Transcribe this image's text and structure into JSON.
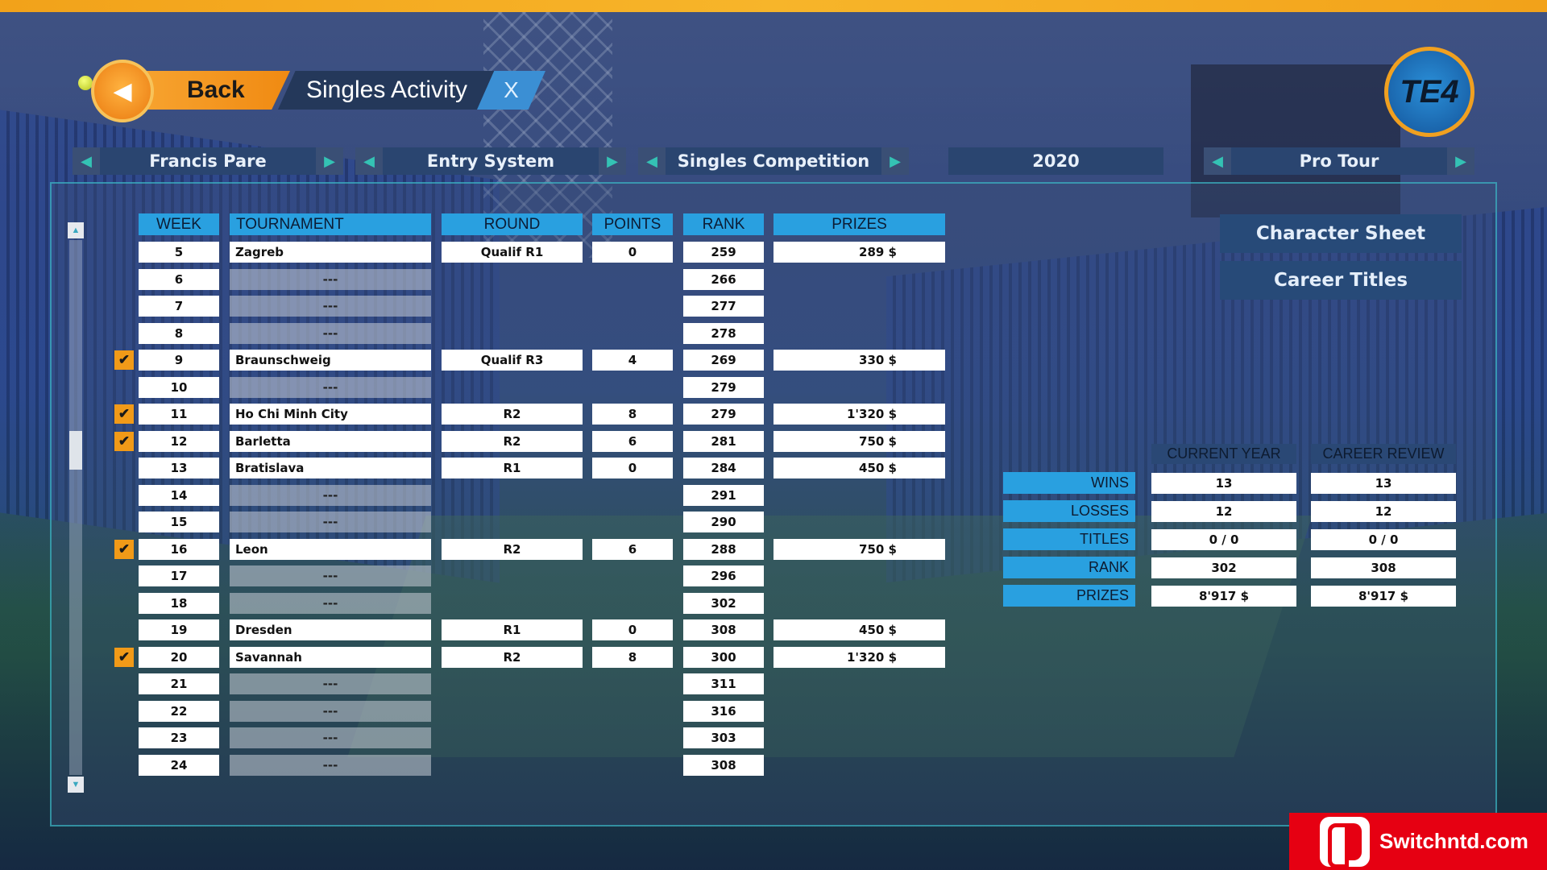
{
  "header": {
    "back_label": "Back",
    "back_icon": "◀",
    "title": "Singles Activity",
    "close_label": "X",
    "logo_text": "TE4"
  },
  "selectors": [
    {
      "value": "Francis Pare",
      "has_arrows": true
    },
    {
      "value": "Entry System",
      "has_arrows": true
    },
    {
      "value": "Singles Competition",
      "has_arrows": true
    },
    {
      "value": "2020",
      "has_arrows": false
    },
    {
      "value": "Pro Tour",
      "has_arrows": true
    }
  ],
  "table": {
    "headers": {
      "week": "WEEK",
      "tournament": "TOURNAMENT",
      "round": "ROUND",
      "points": "POINTS",
      "rank": "RANK",
      "prizes": "PRIZES"
    },
    "rows": [
      {
        "week": "5",
        "tournament": "Zagreb",
        "round": "Qualif R1",
        "points": "0",
        "rank": "259",
        "prizes": "289 $",
        "checked": false
      },
      {
        "week": "6",
        "tournament": "---",
        "rank": "266",
        "checked": false
      },
      {
        "week": "7",
        "tournament": "---",
        "rank": "277",
        "checked": false
      },
      {
        "week": "8",
        "tournament": "---",
        "rank": "278",
        "checked": false
      },
      {
        "week": "9",
        "tournament": "Braunschweig",
        "round": "Qualif R3",
        "points": "4",
        "rank": "269",
        "prizes": "330 $",
        "checked": true
      },
      {
        "week": "10",
        "tournament": "---",
        "rank": "279",
        "checked": false
      },
      {
        "week": "11",
        "tournament": "Ho Chi Minh City",
        "round": "R2",
        "points": "8",
        "rank": "279",
        "prizes": "1'320 $",
        "checked": true
      },
      {
        "week": "12",
        "tournament": "Barletta",
        "round": "R2",
        "points": "6",
        "rank": "281",
        "prizes": "750 $",
        "checked": true
      },
      {
        "week": "13",
        "tournament": "Bratislava",
        "round": "R1",
        "points": "0",
        "rank": "284",
        "prizes": "450 $",
        "checked": false
      },
      {
        "week": "14",
        "tournament": "---",
        "rank": "291",
        "checked": false
      },
      {
        "week": "15",
        "tournament": "---",
        "rank": "290",
        "checked": false
      },
      {
        "week": "16",
        "tournament": "Leon",
        "round": "R2",
        "points": "6",
        "rank": "288",
        "prizes": "750 $",
        "checked": true
      },
      {
        "week": "17",
        "tournament": "---",
        "rank": "296",
        "checked": false
      },
      {
        "week": "18",
        "tournament": "---",
        "rank": "302",
        "checked": false
      },
      {
        "week": "19",
        "tournament": "Dresden",
        "round": "R1",
        "points": "0",
        "rank": "308",
        "prizes": "450 $",
        "checked": false
      },
      {
        "week": "20",
        "tournament": "Savannah",
        "round": "R2",
        "points": "8",
        "rank": "300",
        "prizes": "1'320 $",
        "checked": true
      },
      {
        "week": "21",
        "tournament": "---",
        "rank": "311",
        "checked": false
      },
      {
        "week": "22",
        "tournament": "---",
        "rank": "316",
        "checked": false
      },
      {
        "week": "23",
        "tournament": "---",
        "rank": "303",
        "checked": false
      },
      {
        "week": "24",
        "tournament": "---",
        "rank": "308",
        "checked": false
      }
    ]
  },
  "side_buttons": {
    "character_sheet": "Character Sheet",
    "career_titles": "Career Titles"
  },
  "stats": {
    "headers": {
      "current_year": "CURRENT YEAR",
      "career_review": "CAREER REVIEW"
    },
    "rows": [
      {
        "label": "WINS",
        "current_year": "13",
        "career_review": "13"
      },
      {
        "label": "LOSSES",
        "current_year": "12",
        "career_review": "12"
      },
      {
        "label": "TITLES",
        "current_year": "0 / 0",
        "career_review": "0 / 0"
      },
      {
        "label": "RANK",
        "current_year": "302",
        "career_review": "308"
      },
      {
        "label": "PRIZES",
        "current_year": "8'917 $",
        "career_review": "8'917 $"
      }
    ]
  },
  "scrollbar": {
    "up_icon": "▲",
    "down_icon": "▼"
  },
  "watermark": {
    "text": "Switchntd.com"
  },
  "colors": {
    "accent_orange": "#f19a18",
    "header_blue": "#29a0e0",
    "selector_bg": "#2a4570",
    "arrow_teal": "#34c2b4"
  }
}
